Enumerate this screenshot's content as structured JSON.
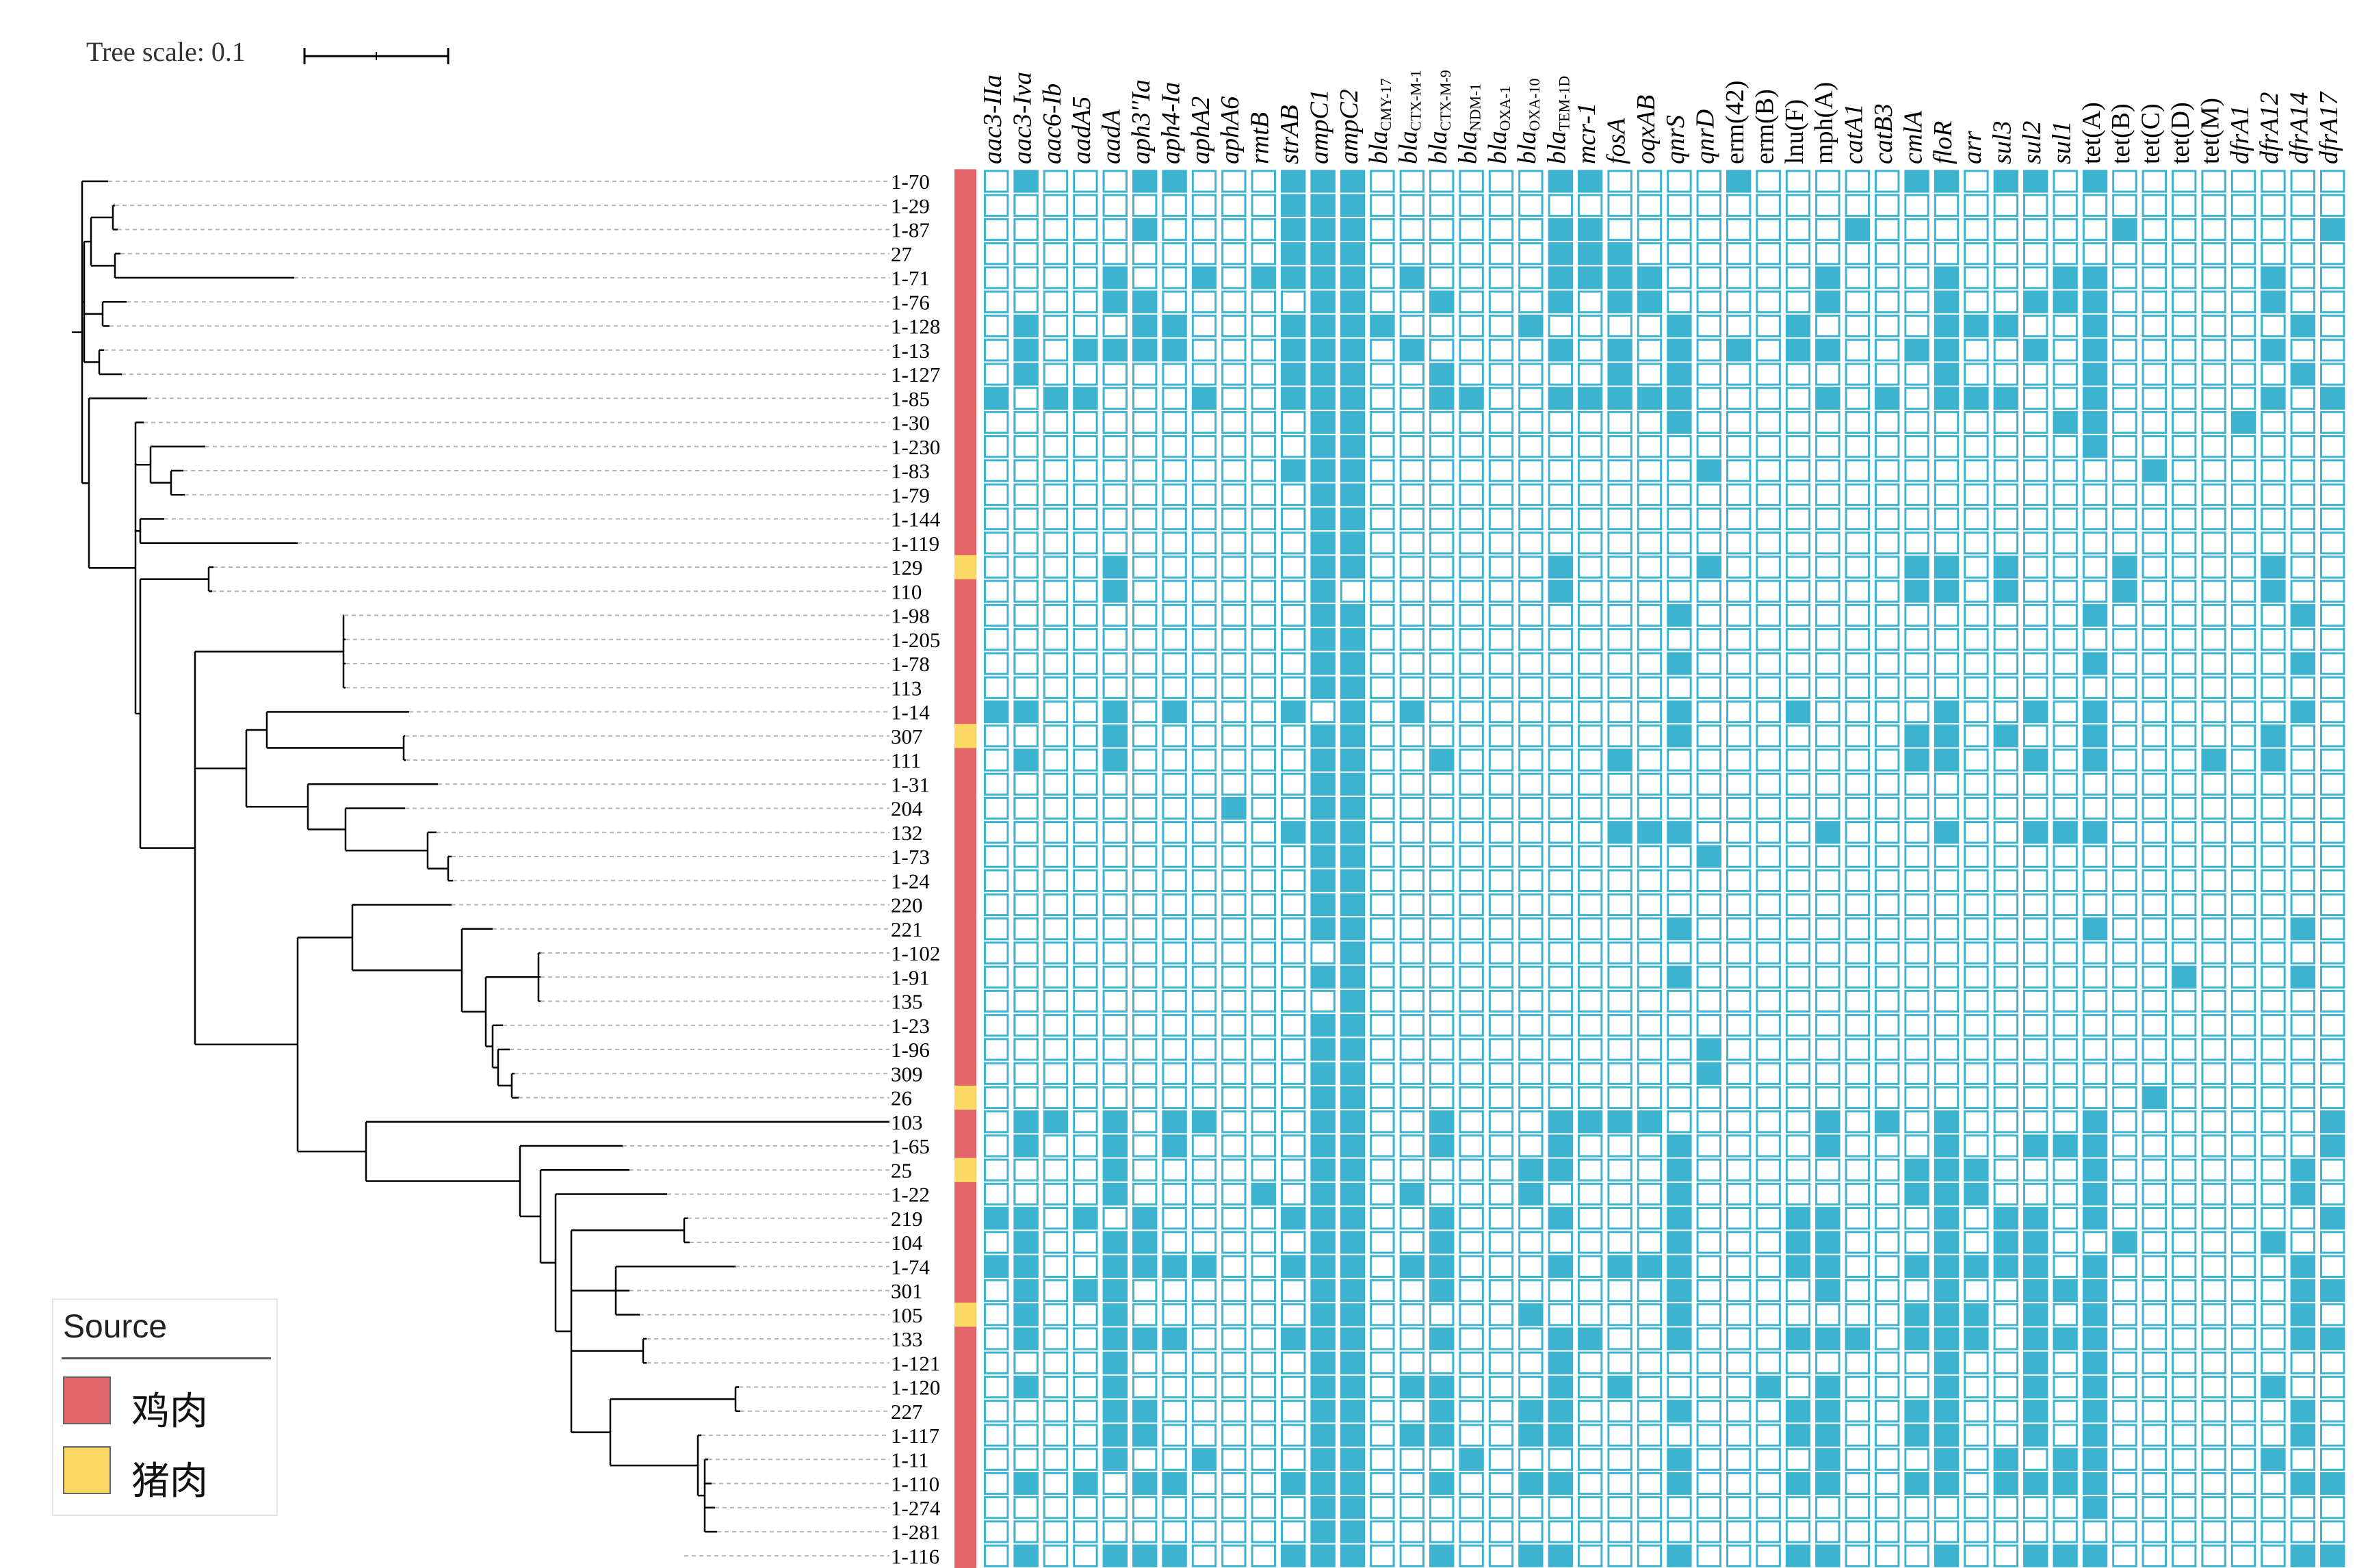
{
  "tree_scale": {
    "label": "Tree scale: 0.1"
  },
  "legend": {
    "title": "Source",
    "items": [
      {
        "label": "鸡肉",
        "color": "#e06468"
      },
      {
        "label": "猪肉",
        "color": "#fdd865"
      }
    ]
  },
  "colors": {
    "present": "#3db3cf",
    "absent": "#ffffff",
    "cell_border": "#3db3cf",
    "branch": "#000000",
    "leader": "#b4b4b4"
  },
  "genes": [
    {
      "name": "aac3-IIa"
    },
    {
      "name": "aac3-Iva"
    },
    {
      "name": "aac6-Ib"
    },
    {
      "name": "aadA5"
    },
    {
      "name": "aadA"
    },
    {
      "name": "aph3''Ia"
    },
    {
      "name": "aph4-Ia"
    },
    {
      "name": "aphA2"
    },
    {
      "name": "aphA6"
    },
    {
      "name": "rmtB"
    },
    {
      "name": "strAB"
    },
    {
      "name": "ampC1"
    },
    {
      "name": "ampC2"
    },
    {
      "name": "bla",
      "sub": "CMY-17"
    },
    {
      "name": "bla",
      "sub": "CTX-M-1"
    },
    {
      "name": "bla",
      "sub": "CTX-M-9"
    },
    {
      "name": "bla",
      "sub": "NDM-1"
    },
    {
      "name": "bla",
      "sub": "OXA-1"
    },
    {
      "name": "bla",
      "sub": "OXA-10"
    },
    {
      "name": "bla",
      "sub": "TEM-1D"
    },
    {
      "name": "mcr-1"
    },
    {
      "name": "fosA"
    },
    {
      "name": "oqxAB"
    },
    {
      "name": "qnrS"
    },
    {
      "name": "qnrD"
    },
    {
      "name": "erm(42)"
    },
    {
      "name": "erm(B)"
    },
    {
      "name": "lnu(F)"
    },
    {
      "name": "mph(A)"
    },
    {
      "name": "catA1"
    },
    {
      "name": "catB3"
    },
    {
      "name": "cmlA"
    },
    {
      "name": "floR"
    },
    {
      "name": "arr"
    },
    {
      "name": "sul3"
    },
    {
      "name": "sul2"
    },
    {
      "name": "sul1"
    },
    {
      "name": "tet(A)"
    },
    {
      "name": "tet(B)"
    },
    {
      "name": "tet(C)"
    },
    {
      "name": "tet(D)"
    },
    {
      "name": "tet(M)"
    },
    {
      "name": "dfrA1"
    },
    {
      "name": "dfrA12"
    },
    {
      "name": "dfrA14"
    },
    {
      "name": "dfrA17"
    }
  ],
  "isolates": [
    {
      "label": "1-70",
      "source": 0,
      "genes": [
        "aac3-Iva",
        "aph3''Ia",
        "aph4-Ia",
        "strAB",
        "ampC1",
        "ampC2",
        "bla TEM-1D",
        "mcr-1",
        "erm(42)",
        "cmlA",
        "floR",
        "sul3",
        "sul2",
        "tet(A)"
      ]
    },
    {
      "label": "1-29",
      "source": 0,
      "genes": [
        "strAB",
        "ampC1",
        "ampC2"
      ]
    },
    {
      "label": "1-87",
      "source": 0,
      "genes": [
        "aph3''Ia",
        "strAB",
        "ampC1",
        "ampC2",
        "bla TEM-1D",
        "mcr-1",
        "catA1",
        "tet(B)",
        "dfrA17"
      ]
    },
    {
      "label": "27",
      "source": 0,
      "genes": [
        "strAB",
        "ampC1",
        "ampC2",
        "bla TEM-1D",
        "mcr-1",
        "fosA"
      ]
    },
    {
      "label": "1-71",
      "source": 0,
      "genes": [
        "aadA",
        "aphA2",
        "rmtB",
        "strAB",
        "ampC1",
        "ampC2",
        "bla CTX-M-1",
        "bla TEM-1D",
        "mcr-1",
        "fosA",
        "oqxAB",
        "mph(A)",
        "floR",
        "sul1",
        "tet(A)",
        "dfrA12"
      ]
    },
    {
      "label": "1-76",
      "source": 0,
      "genes": [
        "aadA",
        "aph3''Ia",
        "ampC1",
        "ampC2",
        "bla CTX-M-9",
        "bla TEM-1D",
        "fosA",
        "oqxAB",
        "mph(A)",
        "floR",
        "sul2",
        "sul1",
        "tet(A)",
        "dfrA12"
      ]
    },
    {
      "label": "1-128",
      "source": 0,
      "genes": [
        "aac3-Iva",
        "aph3''Ia",
        "aph4-Ia",
        "strAB",
        "ampC1",
        "ampC2",
        "bla CMY-17",
        "bla OXA-10",
        "qnrS",
        "lnu(F)",
        "floR",
        "arr",
        "sul3",
        "tet(A)",
        "dfrA14"
      ]
    },
    {
      "label": "1-13",
      "source": 0,
      "genes": [
        "aac3-Iva",
        "aadA5",
        "aadA",
        "aph3''Ia",
        "aph4-Ia",
        "strAB",
        "ampC1",
        "ampC2",
        "bla CTX-M-1",
        "bla TEM-1D",
        "fosA",
        "qnrS",
        "erm(42)",
        "lnu(F)",
        "mph(A)",
        "cmlA",
        "floR",
        "sul2",
        "tet(A)",
        "dfrA12"
      ]
    },
    {
      "label": "1-127",
      "source": 0,
      "genes": [
        "aac3-Iva",
        "strAB",
        "ampC1",
        "ampC2",
        "bla CTX-M-9",
        "fosA",
        "qnrS",
        "floR",
        "tet(A)",
        "dfrA14"
      ]
    },
    {
      "label": "1-85",
      "source": 0,
      "genes": [
        "aac3-IIa",
        "aac6-Ib",
        "aadA5",
        "aphA2",
        "strAB",
        "ampC1",
        "ampC2",
        "bla CTX-M-9",
        "bla NDM-1",
        "bla TEM-1D",
        "mcr-1",
        "fosA",
        "oqxAB",
        "qnrS",
        "mph(A)",
        "catB3",
        "floR",
        "arr",
        "sul3",
        "tet(A)",
        "dfrA12",
        "dfrA17"
      ]
    },
    {
      "label": "1-30",
      "source": 0,
      "genes": [
        "ampC1",
        "ampC2",
        "qnrS",
        "sul1",
        "tet(A)",
        "dfrA1"
      ]
    },
    {
      "label": "1-230",
      "source": 0,
      "genes": [
        "ampC1",
        "ampC2",
        "tet(A)"
      ]
    },
    {
      "label": "1-83",
      "source": 0,
      "genes": [
        "strAB",
        "ampC1",
        "ampC2",
        "qnrD",
        "tet(C)"
      ]
    },
    {
      "label": "1-79",
      "source": 0,
      "genes": [
        "ampC1",
        "ampC2"
      ]
    },
    {
      "label": "1-144",
      "source": 0,
      "genes": [
        "ampC1",
        "ampC2"
      ]
    },
    {
      "label": "1-119",
      "source": 0,
      "genes": [
        "ampC1",
        "ampC2"
      ]
    },
    {
      "label": "129",
      "source": 1,
      "genes": [
        "aadA",
        "ampC1",
        "ampC2",
        "bla TEM-1D",
        "qnrD",
        "cmlA",
        "floR",
        "sul3",
        "tet(B)",
        "dfrA12"
      ]
    },
    {
      "label": "110",
      "source": 0,
      "genes": [
        "aadA",
        "ampC1",
        "bla TEM-1D",
        "cmlA",
        "floR",
        "sul3",
        "tet(B)",
        "dfrA12"
      ]
    },
    {
      "label": "1-98",
      "source": 0,
      "genes": [
        "ampC1",
        "ampC2",
        "qnrS",
        "tet(A)",
        "dfrA14"
      ]
    },
    {
      "label": "1-205",
      "source": 0,
      "genes": [
        "ampC1",
        "ampC2"
      ]
    },
    {
      "label": "1-78",
      "source": 0,
      "genes": [
        "ampC1",
        "ampC2",
        "qnrS",
        "tet(A)",
        "dfrA14"
      ]
    },
    {
      "label": "113",
      "source": 0,
      "genes": [
        "ampC1",
        "ampC2"
      ]
    },
    {
      "label": "1-14",
      "source": 0,
      "genes": [
        "aac3-IIa",
        "aac3-Iva",
        "aadA",
        "aph4-Ia",
        "strAB",
        "ampC2",
        "bla CTX-M-1",
        "qnrS",
        "lnu(F)",
        "floR",
        "sul2",
        "tet(A)",
        "dfrA14"
      ]
    },
    {
      "label": "307",
      "source": 1,
      "genes": [
        "aadA",
        "ampC1",
        "ampC2",
        "qnrS",
        "cmlA",
        "floR",
        "sul3",
        "tet(A)",
        "dfrA12"
      ]
    },
    {
      "label": "111",
      "source": 0,
      "genes": [
        "aac3-Iva",
        "aadA",
        "ampC1",
        "ampC2",
        "bla CTX-M-9",
        "fosA",
        "cmlA",
        "floR",
        "sul2",
        "tet(A)",
        "tet(M)",
        "dfrA12"
      ]
    },
    {
      "label": "1-31",
      "source": 0,
      "genes": [
        "ampC1",
        "ampC2"
      ]
    },
    {
      "label": "204",
      "source": 0,
      "genes": [
        "aphA6",
        "ampC1",
        "ampC2"
      ]
    },
    {
      "label": "132",
      "source": 0,
      "genes": [
        "strAB",
        "ampC1",
        "ampC2",
        "fosA",
        "oqxAB",
        "qnrS",
        "mph(A)",
        "floR",
        "sul2",
        "sul1",
        "tet(A)"
      ]
    },
    {
      "label": "1-73",
      "source": 0,
      "genes": [
        "ampC1",
        "ampC2",
        "qnrD"
      ]
    },
    {
      "label": "1-24",
      "source": 0,
      "genes": [
        "ampC1",
        "ampC2"
      ]
    },
    {
      "label": "220",
      "source": 0,
      "genes": [
        "ampC1",
        "ampC2"
      ]
    },
    {
      "label": "221",
      "source": 0,
      "genes": [
        "ampC1",
        "ampC2",
        "qnrS",
        "tet(A)",
        "dfrA14"
      ]
    },
    {
      "label": "1-102",
      "source": 0,
      "genes": [
        "ampC2"
      ]
    },
    {
      "label": "1-91",
      "source": 0,
      "genes": [
        "ampC1",
        "ampC2",
        "qnrS",
        "tet(D)",
        "dfrA14"
      ]
    },
    {
      "label": "135",
      "source": 0,
      "genes": [
        "ampC2"
      ]
    },
    {
      "label": "1-23",
      "source": 0,
      "genes": [
        "ampC1",
        "ampC2"
      ]
    },
    {
      "label": "1-96",
      "source": 0,
      "genes": [
        "ampC1",
        "ampC2",
        "qnrD"
      ]
    },
    {
      "label": "309",
      "source": 0,
      "genes": [
        "ampC1",
        "ampC2",
        "qnrD"
      ]
    },
    {
      "label": "26",
      "source": 1,
      "genes": [
        "ampC1",
        "ampC2",
        "tet(C)"
      ]
    },
    {
      "label": "103",
      "source": 0,
      "genes": [
        "aac3-Iva",
        "aac6-Ib",
        "aadA",
        "aph4-Ia",
        "aphA2",
        "ampC1",
        "ampC2",
        "bla CTX-M-9",
        "bla TEM-1D",
        "mcr-1",
        "fosA",
        "oqxAB",
        "mph(A)",
        "catB3",
        "floR",
        "tet(A)",
        "dfrA17"
      ]
    },
    {
      "label": "1-65",
      "source": 0,
      "genes": [
        "aac3-Iva",
        "aadA",
        "aph4-Ia",
        "ampC1",
        "ampC2",
        "bla CTX-M-9",
        "bla TEM-1D",
        "qnrS",
        "mph(A)",
        "floR",
        "sul2",
        "sul1",
        "tet(A)",
        "dfrA17"
      ]
    },
    {
      "label": "25",
      "source": 1,
      "genes": [
        "aadA",
        "ampC1",
        "ampC2",
        "bla OXA-10",
        "bla TEM-1D",
        "qnrS",
        "cmlA",
        "floR",
        "arr",
        "tet(A)",
        "dfrA14"
      ]
    },
    {
      "label": "1-22",
      "source": 0,
      "genes": [
        "aadA",
        "rmtB",
        "ampC1",
        "ampC2",
        "bla CTX-M-1",
        "bla OXA-10",
        "qnrS",
        "cmlA",
        "floR",
        "arr",
        "tet(A)",
        "dfrA14"
      ]
    },
    {
      "label": "219",
      "source": 0,
      "genes": [
        "aac3-IIa",
        "aac3-Iva",
        "aadA5",
        "aph3''Ia",
        "strAB",
        "ampC1",
        "ampC2",
        "bla CTX-M-9",
        "bla TEM-1D",
        "qnrS",
        "lnu(F)",
        "mph(A)",
        "floR",
        "sul3",
        "sul2",
        "tet(A)",
        "dfrA17"
      ]
    },
    {
      "label": "104",
      "source": 0,
      "genes": [
        "aac3-Iva",
        "aadA",
        "aph3''Ia",
        "ampC1",
        "ampC2",
        "bla CTX-M-9",
        "qnrS",
        "lnu(F)",
        "mph(A)",
        "floR",
        "sul3",
        "sul2",
        "tet(B)",
        "dfrA12"
      ]
    },
    {
      "label": "1-74",
      "source": 0,
      "genes": [
        "aac3-IIa",
        "aac3-Iva",
        "aadA",
        "aph3''Ia",
        "aph4-Ia",
        "aphA2",
        "strAB",
        "ampC1",
        "ampC2",
        "bla CTX-M-1",
        "bla CTX-M-9",
        "bla TEM-1D",
        "fosA",
        "oqxAB",
        "qnrS",
        "lnu(F)",
        "mph(A)",
        "cmlA",
        "floR",
        "arr",
        "sul3",
        "sul2",
        "tet(A)",
        "dfrA14"
      ]
    },
    {
      "label": "301",
      "source": 0,
      "genes": [
        "aac3-Iva",
        "aadA5",
        "aadA",
        "ampC1",
        "ampC2",
        "bla CTX-M-9",
        "qnrS",
        "mph(A)",
        "floR",
        "sul2",
        "sul1",
        "tet(A)",
        "dfrA14",
        "dfrA17"
      ]
    },
    {
      "label": "105",
      "source": 1,
      "genes": [
        "aac3-Iva",
        "aadA",
        "ampC1",
        "ampC2",
        "bla OXA-10",
        "qnrS",
        "cmlA",
        "floR",
        "arr",
        "sul2",
        "tet(A)",
        "dfrA14"
      ]
    },
    {
      "label": "133",
      "source": 0,
      "genes": [
        "aac3-Iva",
        "aadA",
        "aph3''Ia",
        "aph4-Ia",
        "strAB",
        "ampC1",
        "ampC2",
        "bla CTX-M-9",
        "bla TEM-1D",
        "mcr-1",
        "qnrS",
        "lnu(F)",
        "mph(A)",
        "catA1",
        "cmlA",
        "floR",
        "arr",
        "sul2",
        "sul1",
        "tet(A)",
        "dfrA14",
        "dfrA17"
      ]
    },
    {
      "label": "1-121",
      "source": 0,
      "genes": [
        "aadA",
        "ampC1",
        "ampC2",
        "bla TEM-1D",
        "floR",
        "sul2",
        "tet(A)"
      ]
    },
    {
      "label": "1-120",
      "source": 0,
      "genes": [
        "aac3-Iva",
        "aadA",
        "ampC1",
        "ampC2",
        "bla CTX-M-1",
        "bla CTX-M-9",
        "bla TEM-1D",
        "fosA",
        "erm(B)",
        "mph(A)",
        "floR",
        "sul2",
        "tet(A)",
        "dfrA12"
      ]
    },
    {
      "label": "227",
      "source": 0,
      "genes": [
        "aadA",
        "aph3''Ia",
        "ampC1",
        "ampC2",
        "bla CTX-M-9",
        "bla OXA-10",
        "bla TEM-1D",
        "qnrS",
        "lnu(F)",
        "mph(A)",
        "cmlA",
        "floR",
        "sul2",
        "tet(A)",
        "dfrA14"
      ]
    },
    {
      "label": "1-117",
      "source": 0,
      "genes": [
        "aadA",
        "aph3''Ia",
        "ampC1",
        "ampC2",
        "bla CTX-M-1",
        "bla CTX-M-9",
        "bla OXA-10",
        "bla TEM-1D",
        "lnu(F)",
        "mph(A)",
        "cmlA",
        "floR",
        "sul2",
        "tet(A)",
        "dfrA14"
      ]
    },
    {
      "label": "1-11",
      "source": 0,
      "genes": [
        "aadA",
        "aphA2",
        "ampC1",
        "ampC2",
        "bla NDM-1",
        "qnrS",
        "mph(A)",
        "floR",
        "sul3",
        "sul1",
        "tet(A)",
        "dfrA12"
      ]
    },
    {
      "label": "1-110",
      "source": 0,
      "genes": [
        "aac3-Iva",
        "aadA5",
        "aph3''Ia",
        "aph4-Ia",
        "strAB",
        "ampC1",
        "ampC2",
        "bla CTX-M-9",
        "bla OXA-10",
        "bla TEM-1D",
        "qnrS",
        "lnu(F)",
        "mph(A)",
        "cmlA",
        "floR",
        "sul3",
        "sul2",
        "sul1",
        "tet(A)",
        "dfrA14",
        "dfrA17"
      ]
    },
    {
      "label": "1-274",
      "source": 0,
      "genes": [
        "ampC1",
        "ampC2",
        "tet(A)"
      ]
    },
    {
      "label": "1-281",
      "source": 0,
      "genes": [
        "ampC1",
        "ampC2"
      ]
    },
    {
      "label": "1-116",
      "source": 0,
      "genes": [
        "aac3-Iva",
        "aadA",
        "aph3''Ia",
        "aph4-Ia",
        "strAB",
        "ampC1",
        "ampC2",
        "bla CTX-M-9",
        "bla OXA-10",
        "bla TEM-1D",
        "qnrS",
        "lnu(F)",
        "mph(A)",
        "floR",
        "sul2",
        "sul1",
        "tet(A)",
        "dfrA14",
        "dfrA17"
      ]
    }
  ]
}
